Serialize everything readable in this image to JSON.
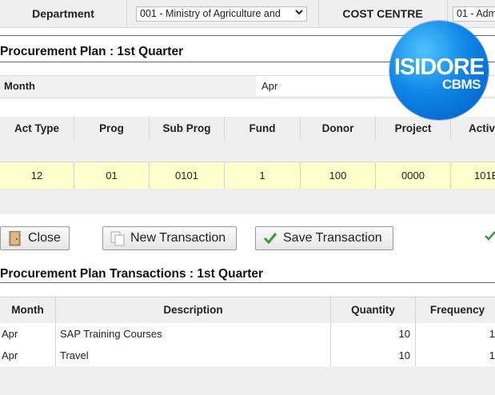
{
  "header": {
    "department_label": "Department",
    "department_value": "001 - Ministry of Agriculture and",
    "cost_centre_label": "COST CENTRE",
    "cost_centre_value": "01 - Adm"
  },
  "plan": {
    "title": "Procurement Plan : 1st Quarter",
    "month_label": "Month",
    "month_value": "Apr"
  },
  "grid": {
    "columns": [
      "Act Type",
      "Prog",
      "Sub Prog",
      "Fund",
      "Donor",
      "Project",
      "Activ"
    ],
    "row": [
      "12",
      "01",
      "0101",
      "1",
      "100",
      "0000",
      "101E"
    ]
  },
  "toolbar": {
    "close_label": "Close",
    "new_label": "New Transaction",
    "save_label": "Save Transaction"
  },
  "transactions": {
    "title": "Procurement Plan Transactions : 1st Quarter",
    "columns": [
      "Month",
      "Description",
      "Quantity",
      "Frequency"
    ],
    "rows": [
      [
        "Apr",
        "SAP Training Courses",
        "10",
        "1"
      ],
      [
        "Apr",
        "Travel",
        "10",
        "1"
      ]
    ]
  },
  "logo": {
    "main": "ISIDORE",
    "sub": "CBMS"
  },
  "colors": {
    "highlight_row": "#ffffcc",
    "header_gray": "#efefef",
    "logo_blue": "#0f86e6",
    "check_green": "#3a9a3a"
  },
  "icons": [
    "door-icon",
    "copy-icon",
    "checkmark-icon",
    "dropdown-arrow-icon"
  ]
}
